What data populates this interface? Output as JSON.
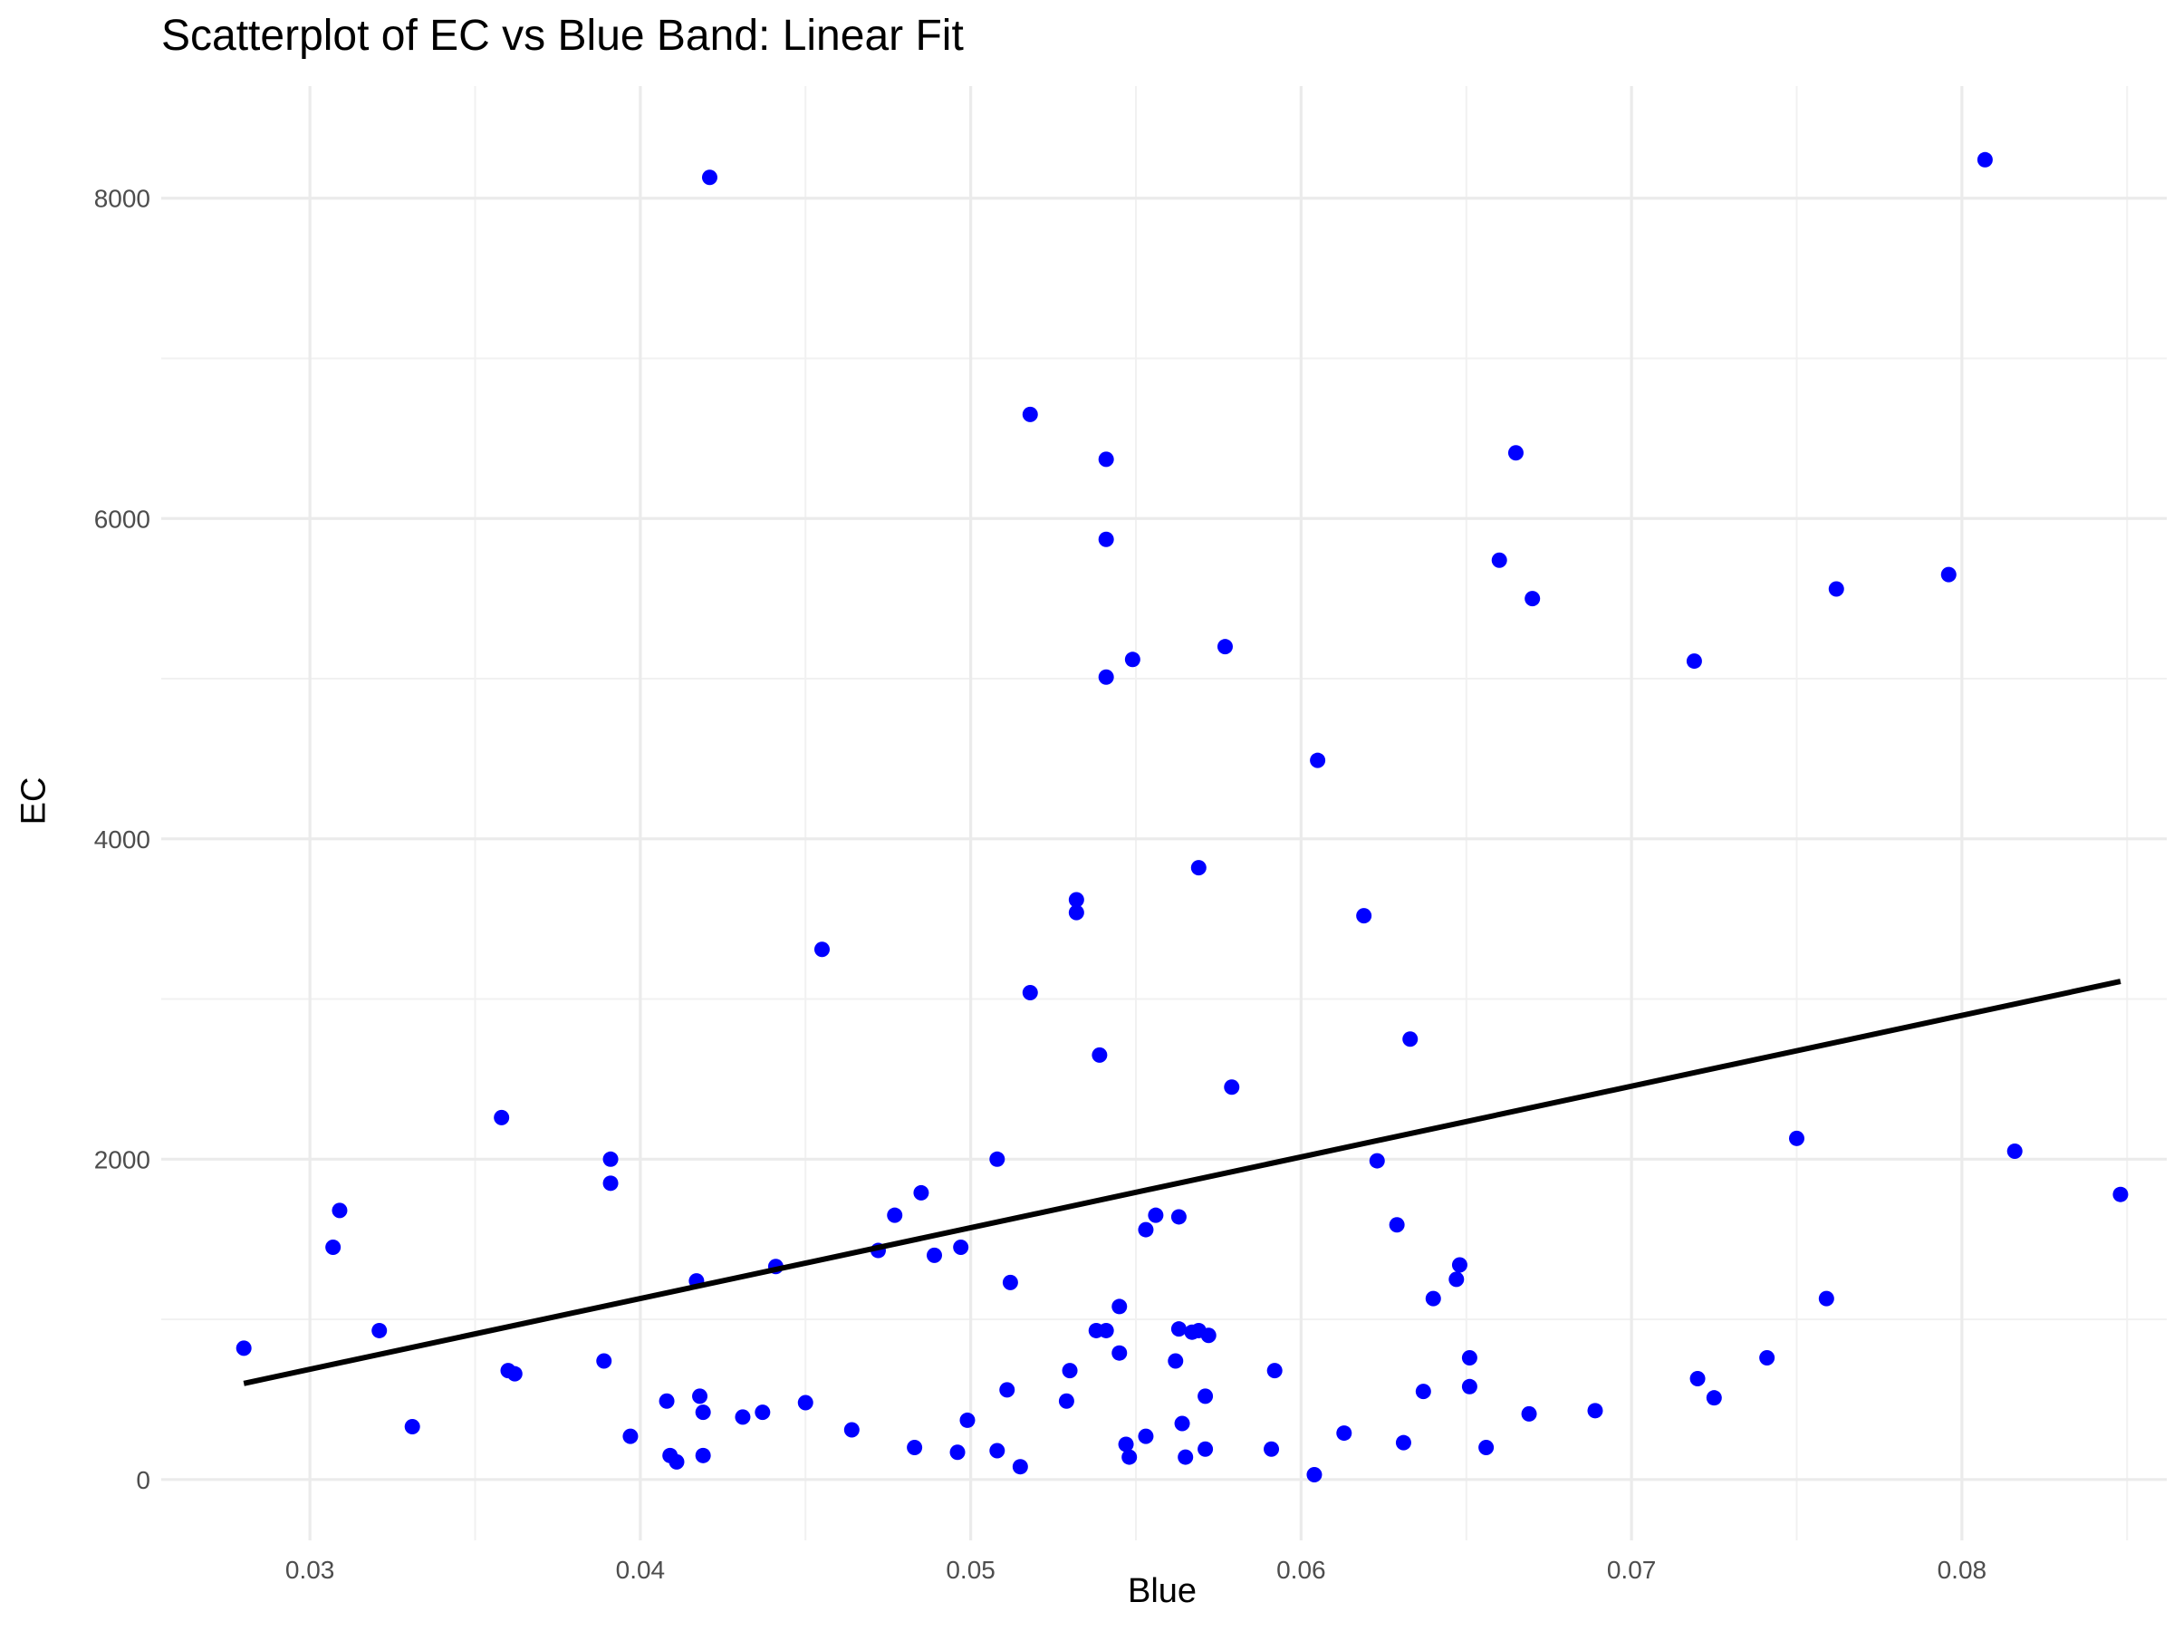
{
  "chart_data": {
    "type": "scatter",
    "title": "Scatterplot of EC vs Blue Band: Linear Fit",
    "xlabel": "Blue",
    "ylabel": "EC",
    "xlim": [
      0.0255,
      0.0862
    ],
    "ylim": [
      -380,
      8700
    ],
    "x_ticks": [
      0.03,
      0.04,
      0.05,
      0.06,
      0.07,
      0.08
    ],
    "x_tick_labels": [
      "0.03",
      "0.04",
      "0.05",
      "0.06",
      "0.07",
      "0.08"
    ],
    "y_ticks": [
      0,
      2000,
      4000,
      6000,
      8000
    ],
    "y_tick_labels": [
      "0",
      "2000",
      "4000",
      "6000",
      "8000"
    ],
    "grid": true,
    "legend": "none",
    "point_color": "#0000ff",
    "line_color": "#000000",
    "series": [
      {
        "type": "scatter",
        "points": [
          [
            0.028,
            820
          ],
          [
            0.0307,
            1450
          ],
          [
            0.0309,
            1680
          ],
          [
            0.0321,
            930
          ],
          [
            0.0331,
            330
          ],
          [
            0.0358,
            2260
          ],
          [
            0.036,
            680
          ],
          [
            0.0362,
            660
          ],
          [
            0.0389,
            740
          ],
          [
            0.0391,
            2000
          ],
          [
            0.0391,
            1850
          ],
          [
            0.0397,
            270
          ],
          [
            0.0408,
            490
          ],
          [
            0.0409,
            150
          ],
          [
            0.0411,
            110
          ],
          [
            0.0417,
            1240
          ],
          [
            0.0418,
            520
          ],
          [
            0.0419,
            420
          ],
          [
            0.0419,
            150
          ],
          [
            0.0421,
            8130
          ],
          [
            0.0431,
            390
          ],
          [
            0.0437,
            420
          ],
          [
            0.0441,
            1330
          ],
          [
            0.045,
            480
          ],
          [
            0.0455,
            3310
          ],
          [
            0.0464,
            310
          ],
          [
            0.0472,
            1430
          ],
          [
            0.0477,
            1650
          ],
          [
            0.0483,
            200
          ],
          [
            0.0485,
            1790
          ],
          [
            0.0489,
            1400
          ],
          [
            0.0496,
            170
          ],
          [
            0.0497,
            1450
          ],
          [
            0.0499,
            370
          ],
          [
            0.0508,
            2000
          ],
          [
            0.0508,
            180
          ],
          [
            0.0511,
            560
          ],
          [
            0.0512,
            1230
          ],
          [
            0.0515,
            80
          ],
          [
            0.0518,
            6650
          ],
          [
            0.0518,
            3040
          ],
          [
            0.0529,
            490
          ],
          [
            0.053,
            680
          ],
          [
            0.0532,
            3620
          ],
          [
            0.0532,
            3540
          ],
          [
            0.0538,
            930
          ],
          [
            0.0539,
            2650
          ],
          [
            0.0541,
            5010
          ],
          [
            0.0541,
            5870
          ],
          [
            0.0541,
            6370
          ],
          [
            0.0541,
            930
          ],
          [
            0.0545,
            790
          ],
          [
            0.0545,
            1080
          ],
          [
            0.0547,
            220
          ],
          [
            0.0548,
            140
          ],
          [
            0.0549,
            5120
          ],
          [
            0.0553,
            1560
          ],
          [
            0.0553,
            270
          ],
          [
            0.0556,
            1650
          ],
          [
            0.0562,
            740
          ],
          [
            0.0563,
            940
          ],
          [
            0.0563,
            1640
          ],
          [
            0.0564,
            350
          ],
          [
            0.0565,
            140
          ],
          [
            0.0567,
            920
          ],
          [
            0.0569,
            3820
          ],
          [
            0.0569,
            930
          ],
          [
            0.0571,
            190
          ],
          [
            0.0571,
            520
          ],
          [
            0.0572,
            900
          ],
          [
            0.0577,
            5200
          ],
          [
            0.0579,
            2450
          ],
          [
            0.0591,
            190
          ],
          [
            0.0592,
            680
          ],
          [
            0.0604,
            30
          ],
          [
            0.0605,
            4490
          ],
          [
            0.0613,
            290
          ],
          [
            0.0619,
            3520
          ],
          [
            0.0623,
            1990
          ],
          [
            0.0629,
            1590
          ],
          [
            0.0631,
            230
          ],
          [
            0.0633,
            2750
          ],
          [
            0.0637,
            550
          ],
          [
            0.064,
            1130
          ],
          [
            0.0647,
            1250
          ],
          [
            0.0648,
            1340
          ],
          [
            0.0651,
            760
          ],
          [
            0.0651,
            580
          ],
          [
            0.0656,
            200
          ],
          [
            0.066,
            5740
          ],
          [
            0.0665,
            6410
          ],
          [
            0.0669,
            410
          ],
          [
            0.067,
            5500
          ],
          [
            0.0689,
            430
          ],
          [
            0.0719,
            5110
          ],
          [
            0.072,
            630
          ],
          [
            0.0725,
            510
          ],
          [
            0.0741,
            760
          ],
          [
            0.075,
            2130
          ],
          [
            0.0759,
            1130
          ],
          [
            0.0762,
            5560
          ],
          [
            0.0796,
            5650
          ],
          [
            0.0807,
            8240
          ],
          [
            0.0816,
            2050
          ],
          [
            0.0848,
            1780
          ]
        ]
      },
      {
        "type": "line",
        "points": [
          [
            0.028,
            600
          ],
          [
            0.0848,
            3110
          ]
        ]
      }
    ]
  }
}
